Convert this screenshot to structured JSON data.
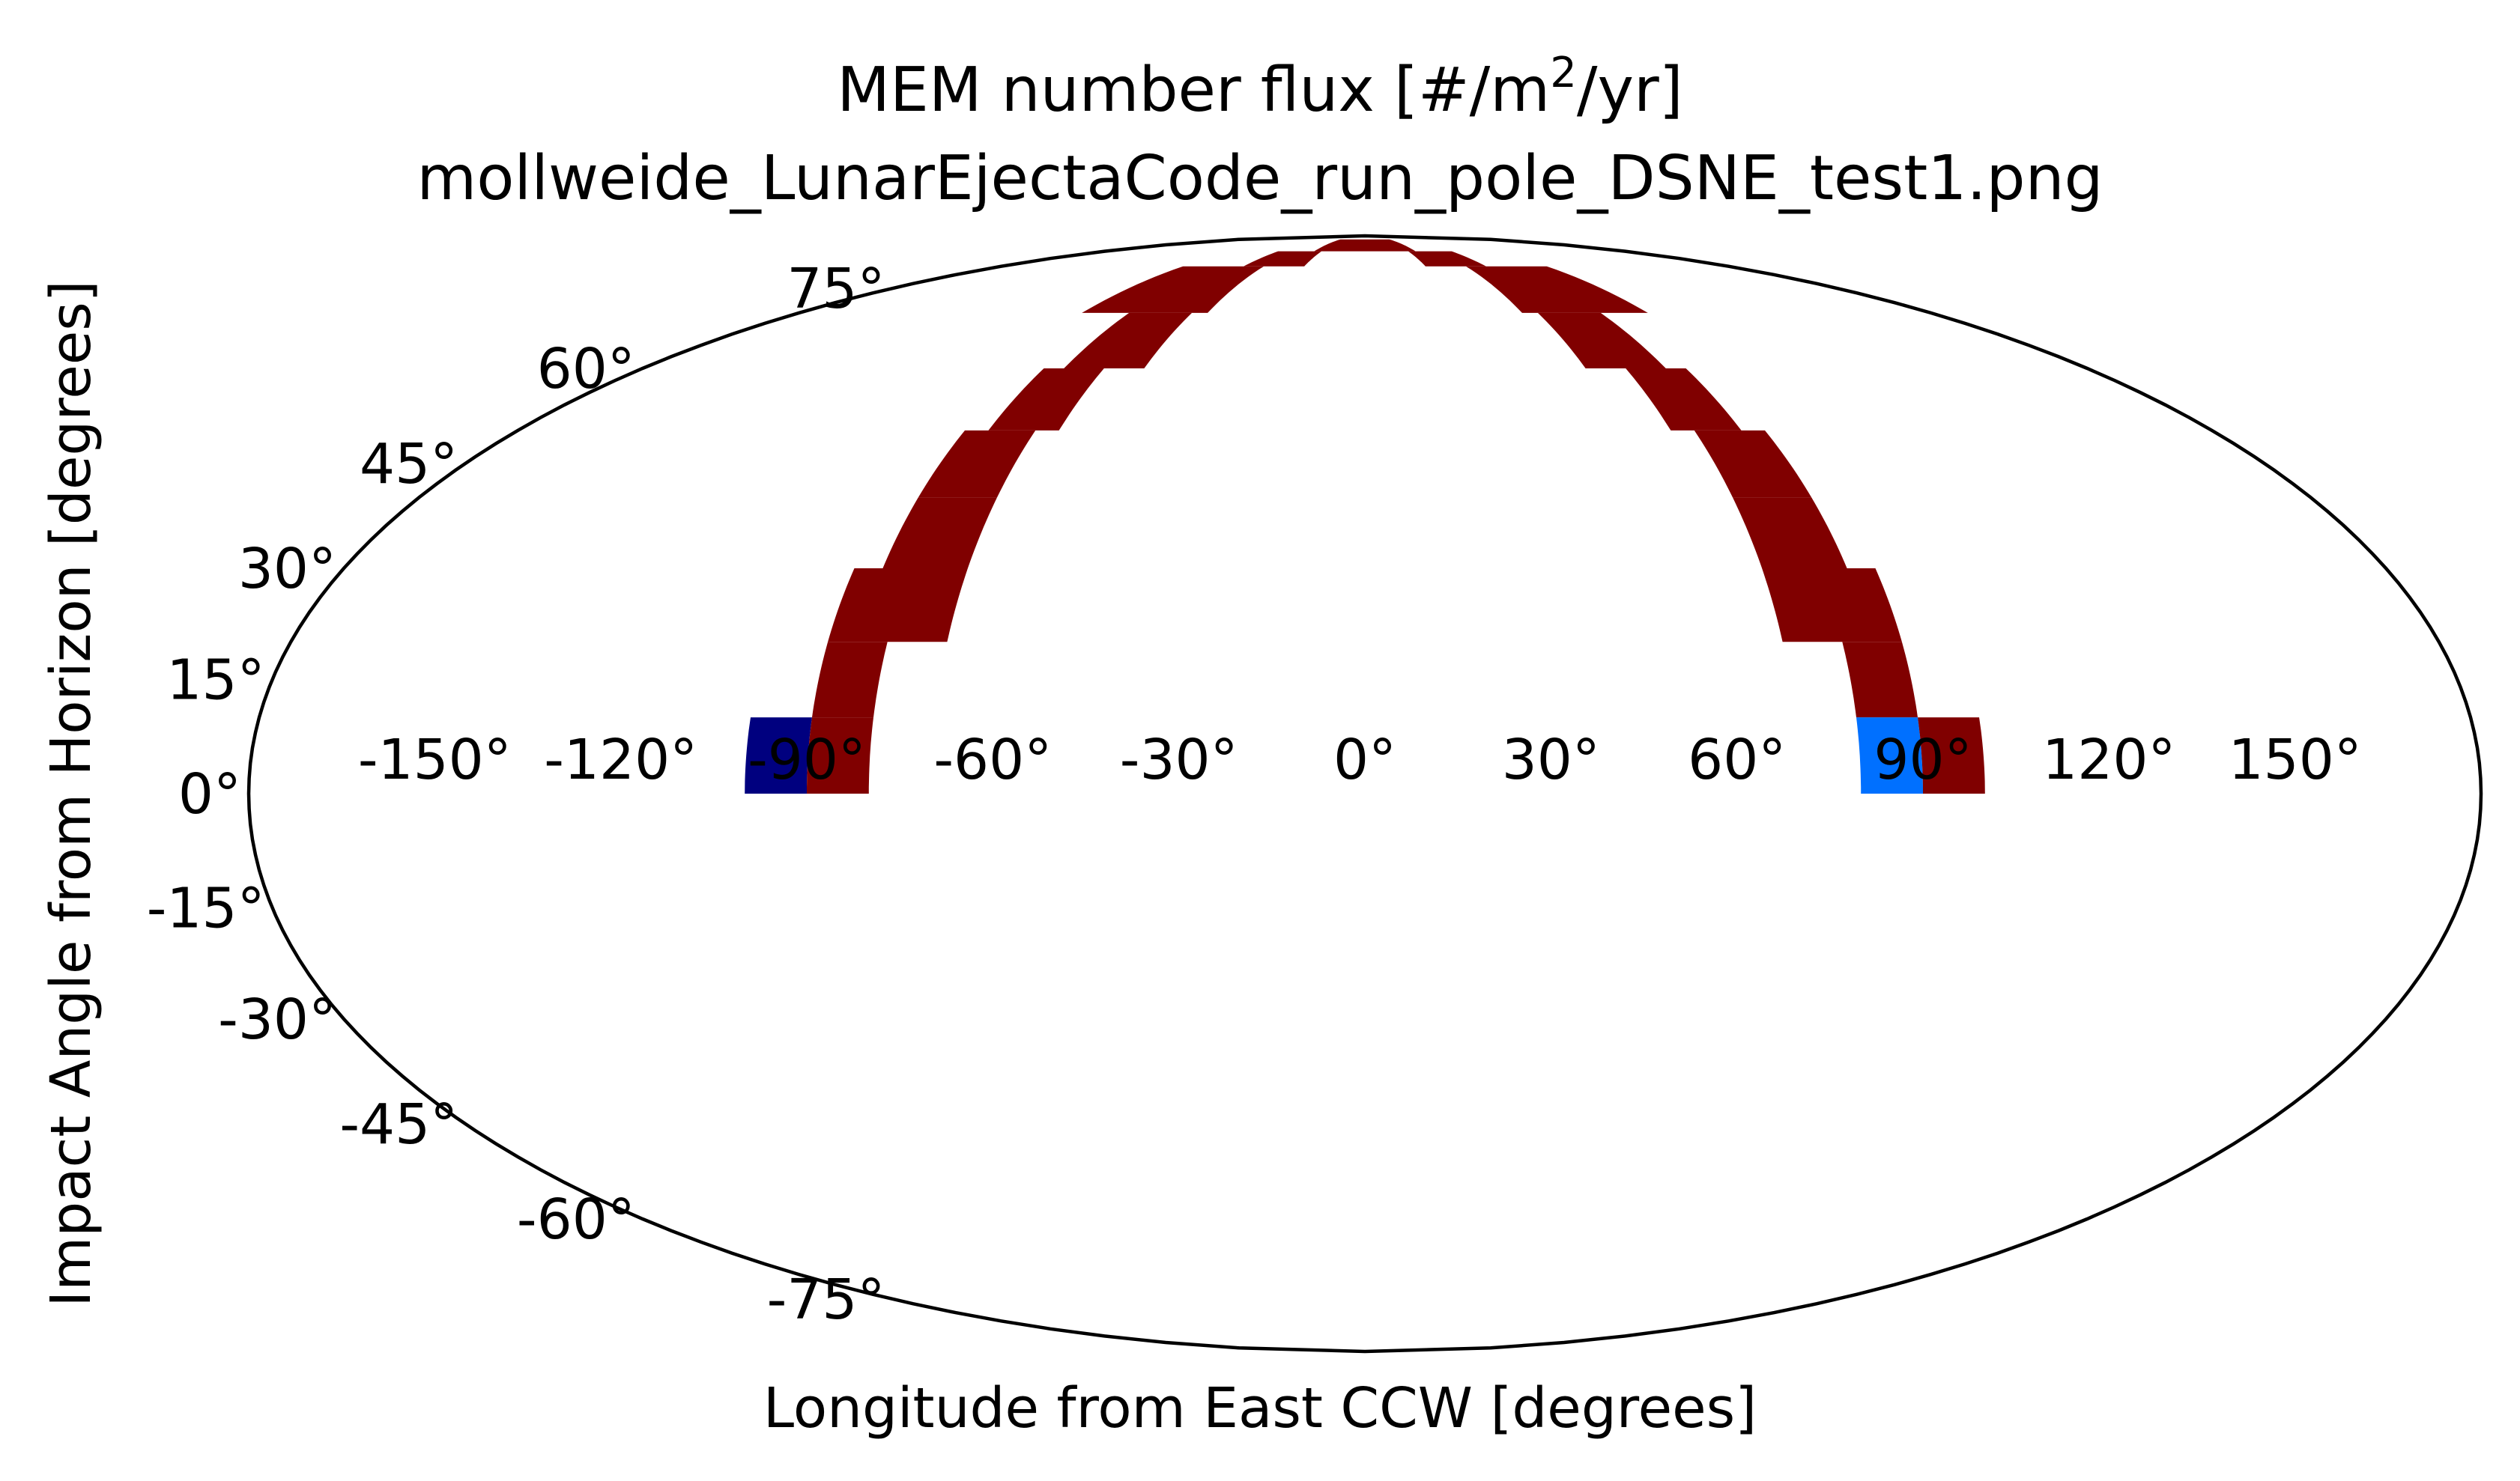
{
  "chart_data": {
    "type": "heatmap",
    "projection": "mollweide",
    "title_line1_prefix": "MEM number flux [#/m",
    "title_line1_sup": "2",
    "title_line1_suffix": "/yr]",
    "subtitle": "mollweide_LunarEjectaCode_run_pole_DSNE_test1.png",
    "xlabel": "Longitude from East CCW [degrees]",
    "ylabel": "Impact Angle from Horizon [degrees]",
    "xlim": [
      -180,
      180
    ],
    "ylim": [
      -90,
      90
    ],
    "grid": false,
    "x_ticks": [
      {
        "value": -150,
        "label": "-150°"
      },
      {
        "value": -120,
        "label": "-120°"
      },
      {
        "value": -90,
        "label": "-90°"
      },
      {
        "value": -60,
        "label": "-60°"
      },
      {
        "value": -30,
        "label": "-30°"
      },
      {
        "value": 0,
        "label": "0°"
      },
      {
        "value": 30,
        "label": "30°"
      },
      {
        "value": 60,
        "label": "60°"
      },
      {
        "value": 90,
        "label": "90°"
      },
      {
        "value": 120,
        "label": "120°"
      },
      {
        "value": 150,
        "label": "150°"
      }
    ],
    "y_ticks": [
      {
        "value": 75,
        "label": "75°"
      },
      {
        "value": 60,
        "label": "60°"
      },
      {
        "value": 45,
        "label": "45°"
      },
      {
        "value": 30,
        "label": "30°"
      },
      {
        "value": 15,
        "label": "15°"
      },
      {
        "value": 0,
        "label": "0°"
      },
      {
        "value": -15,
        "label": "-15°"
      },
      {
        "value": -30,
        "label": "-30°"
      },
      {
        "value": -45,
        "label": "-45°"
      },
      {
        "value": -60,
        "label": "-60°"
      },
      {
        "value": -75,
        "label": "-75°"
      }
    ],
    "colors": {
      "high": "#800000",
      "low": "#00007f",
      "mid": "#0070ff",
      "outline": "#000000"
    },
    "cells": [
      {
        "lon": [
          -100,
          -90
        ],
        "lat": [
          0,
          10
        ],
        "color": "#00007f"
      },
      {
        "lon": [
          -90,
          -80
        ],
        "lat": [
          0,
          10
        ],
        "color": "#800000"
      },
      {
        "lon": [
          -90,
          -80
        ],
        "lat": [
          10,
          20
        ],
        "color": "#800000"
      },
      {
        "lon": [
          -90,
          -70
        ],
        "lat": [
          20,
          30
        ],
        "color": "#800000"
      },
      {
        "lon": [
          -85,
          -70
        ],
        "lat": [
          30,
          40
        ],
        "color": "#800000"
      },
      {
        "lon": [
          -85,
          -70
        ],
        "lat": [
          40,
          50
        ],
        "color": "#800000"
      },
      {
        "lon": [
          -80,
          -65
        ],
        "lat": [
          50,
          60
        ],
        "color": "#800000"
      },
      {
        "lon": [
          -75,
          -55
        ],
        "lat": [
          60,
          70
        ],
        "color": "#800000"
      },
      {
        "lon": [
          -90,
          -50
        ],
        "lat": [
          70,
          80
        ],
        "color": "#800000"
      },
      {
        "lon": [
          -60,
          -30
        ],
        "lat": [
          80,
          84
        ],
        "color": "#800000"
      },
      {
        "lon": [
          -35,
          35
        ],
        "lat": [
          84,
          88
        ],
        "color": "#800000"
      },
      {
        "lon": [
          30,
          60
        ],
        "lat": [
          80,
          84
        ],
        "color": "#800000"
      },
      {
        "lon": [
          50,
          90
        ],
        "lat": [
          70,
          80
        ],
        "color": "#800000"
      },
      {
        "lon": [
          55,
          75
        ],
        "lat": [
          60,
          70
        ],
        "color": "#800000"
      },
      {
        "lon": [
          65,
          80
        ],
        "lat": [
          50,
          60
        ],
        "color": "#800000"
      },
      {
        "lon": [
          70,
          85
        ],
        "lat": [
          40,
          50
        ],
        "color": "#800000"
      },
      {
        "lon": [
          70,
          85
        ],
        "lat": [
          30,
          40
        ],
        "color": "#800000"
      },
      {
        "lon": [
          70,
          90
        ],
        "lat": [
          20,
          30
        ],
        "color": "#800000"
      },
      {
        "lon": [
          80,
          90
        ],
        "lat": [
          10,
          20
        ],
        "color": "#800000"
      },
      {
        "lon": [
          80,
          90
        ],
        "lat": [
          0,
          10
        ],
        "color": "#0070ff"
      },
      {
        "lon": [
          90,
          100
        ],
        "lat": [
          0,
          10
        ],
        "color": "#800000"
      }
    ]
  }
}
